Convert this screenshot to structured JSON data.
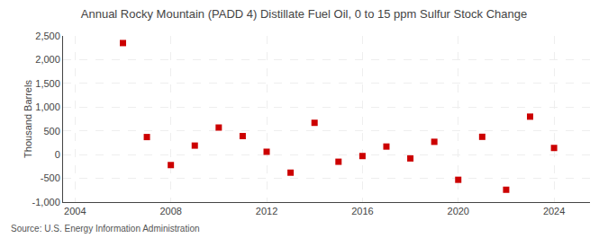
{
  "chart_data": {
    "type": "scatter",
    "title": "Annual Rocky Mountain (PADD 4) Distillate Fuel Oil, 0 to 15 ppm Sulfur Stock Change",
    "ylabel": "Thousand Barrels",
    "annotations": [
      "Source: U.S. Energy Information Administration"
    ],
    "x": [
      2006,
      2007,
      2008,
      2009,
      2010,
      2011,
      2012,
      2013,
      2014,
      2015,
      2016,
      2017,
      2018,
      2019,
      2020,
      2021,
      2022,
      2023,
      2024
    ],
    "values": [
      2350,
      370,
      -220,
      190,
      570,
      390,
      60,
      -380,
      670,
      -150,
      -30,
      170,
      -80,
      270,
      -530,
      375,
      -740,
      800,
      140
    ],
    "color": "#cc0000",
    "marker": "square",
    "xlim": [
      2003.5,
      2025.5
    ],
    "ylim": [
      -1000,
      2500
    ],
    "xticks": [
      2004,
      2008,
      2012,
      2016,
      2020,
      2024
    ],
    "yticks": [
      {
        "value": -1000,
        "label": "-1,000"
      },
      -500,
      0,
      500,
      {
        "value": 1000,
        "label": "1,000"
      },
      {
        "value": 1500,
        "label": "1,500"
      },
      {
        "value": 2000,
        "label": "2,000"
      },
      {
        "value": 2500,
        "label": "2,500"
      }
    ],
    "grid": true
  }
}
